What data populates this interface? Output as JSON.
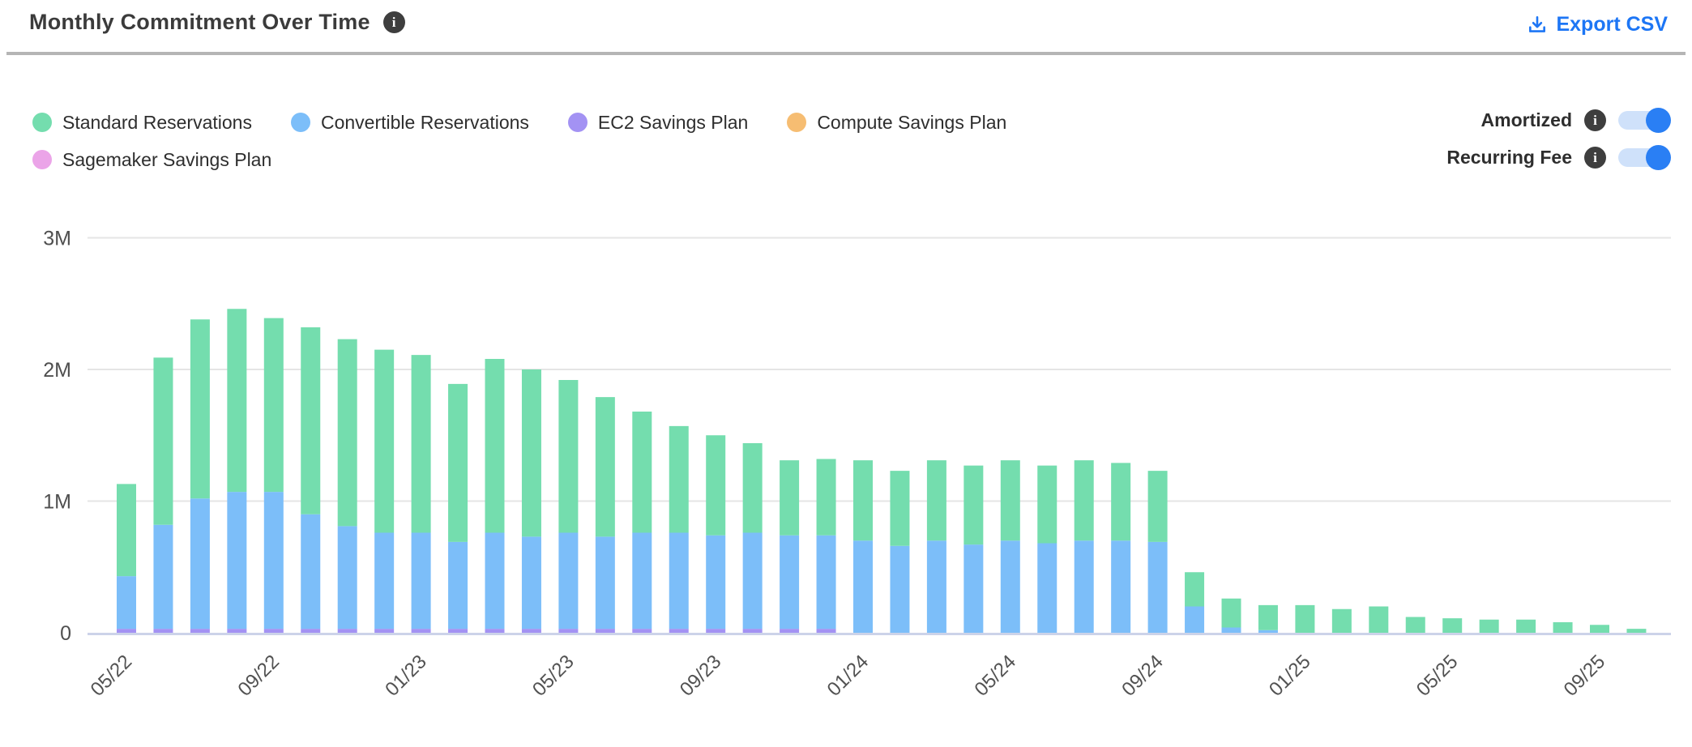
{
  "header": {
    "title": "Monthly Commitment Over Time",
    "export_label": "Export CSV"
  },
  "toggles": [
    {
      "label": "Amortized",
      "state": "on"
    },
    {
      "label": "Recurring Fee",
      "state": "on"
    }
  ],
  "legend": {
    "rows": [
      [
        0,
        1,
        2,
        3
      ],
      [
        4
      ]
    ]
  },
  "colors": {
    "accent_blue": "#1d76f5",
    "toggle_track": "#cfe1fa",
    "toggle_knob": "#2a7ff4",
    "info_icon_bg": "#3e3e3e",
    "title_text": "#3b3b3b",
    "gridline": "#e5e5e5",
    "baseline": "#ccd3e9",
    "axis_label": "#4f4f4f"
  },
  "chart_data": {
    "type": "bar",
    "stacked": true,
    "title": "Monthly Commitment Over Time",
    "xlabel": "",
    "ylabel": "",
    "ylim_millions": [
      0,
      3
    ],
    "y_tick_labels": [
      "0",
      "1M",
      "2M",
      "3M"
    ],
    "grid": "horizontal",
    "legend_position": "top-left",
    "categories": [
      "05/22",
      "06/22",
      "07/22",
      "08/22",
      "09/22",
      "10/22",
      "11/22",
      "12/22",
      "01/23",
      "02/23",
      "03/23",
      "04/23",
      "05/23",
      "06/23",
      "07/23",
      "08/23",
      "09/23",
      "10/23",
      "11/23",
      "12/23",
      "01/24",
      "02/24",
      "03/24",
      "04/24",
      "05/24",
      "06/24",
      "07/24",
      "08/24",
      "09/24",
      "10/24",
      "11/24",
      "12/24",
      "01/25",
      "02/25",
      "03/25",
      "04/25",
      "05/25",
      "06/25",
      "07/25",
      "08/25",
      "09/25",
      "10/25"
    ],
    "shown_x_tick_labels": [
      "05/22",
      "09/22",
      "01/23",
      "05/23",
      "09/23",
      "01/24",
      "05/24",
      "09/24",
      "01/25",
      "05/25",
      "09/25"
    ],
    "x_tick_every": 4,
    "values_unit": "millions",
    "stack_order_bottom_to_top": [
      "Sagemaker Savings Plan",
      "Compute Savings Plan",
      "EC2 Savings Plan",
      "Convertible Reservations",
      "Standard Reservations"
    ],
    "series": [
      {
        "name": "Standard Reservations",
        "color": "#74ddae",
        "values": [
          0.7,
          1.27,
          1.36,
          1.39,
          1.32,
          1.42,
          1.42,
          1.39,
          1.35,
          1.2,
          1.32,
          1.27,
          1.16,
          1.06,
          0.92,
          0.81,
          0.76,
          0.68,
          0.57,
          0.58,
          0.61,
          0.57,
          0.61,
          0.6,
          0.61,
          0.59,
          0.61,
          0.59,
          0.54,
          0.26,
          0.22,
          0.19,
          0.21,
          0.18,
          0.2,
          0.12,
          0.11,
          0.1,
          0.1,
          0.08,
          0.06,
          0.03
        ]
      },
      {
        "name": "Convertible Reservations",
        "color": "#7cbef9",
        "values": [
          0.4,
          0.79,
          0.99,
          1.04,
          1.04,
          0.87,
          0.78,
          0.73,
          0.73,
          0.66,
          0.73,
          0.7,
          0.73,
          0.7,
          0.73,
          0.73,
          0.71,
          0.73,
          0.71,
          0.71,
          0.7,
          0.66,
          0.7,
          0.67,
          0.7,
          0.68,
          0.7,
          0.7,
          0.69,
          0.2,
          0.04,
          0.02,
          0,
          0,
          0,
          0,
          0,
          0,
          0,
          0,
          0,
          0
        ]
      },
      {
        "name": "EC2 Savings Plan",
        "color": "#a392f3",
        "values": [
          0.03,
          0.03,
          0.03,
          0.03,
          0.03,
          0.03,
          0.03,
          0.03,
          0.03,
          0.03,
          0.03,
          0.03,
          0.03,
          0.03,
          0.03,
          0.03,
          0.03,
          0.03,
          0.03,
          0.03,
          0,
          0,
          0,
          0,
          0,
          0,
          0,
          0,
          0,
          0,
          0,
          0,
          0,
          0,
          0,
          0,
          0,
          0,
          0,
          0,
          0,
          0
        ]
      },
      {
        "name": "Compute Savings Plan",
        "color": "#f6bd72",
        "values": [
          0,
          0,
          0,
          0,
          0,
          0,
          0,
          0,
          0,
          0,
          0,
          0,
          0,
          0,
          0,
          0,
          0,
          0,
          0,
          0,
          0,
          0,
          0,
          0,
          0,
          0,
          0,
          0,
          0,
          0,
          0,
          0,
          0,
          0,
          0,
          0,
          0,
          0,
          0,
          0,
          0,
          0
        ]
      },
      {
        "name": "Sagemaker Savings Plan",
        "color": "#eba4e8",
        "values": [
          0,
          0,
          0,
          0,
          0,
          0,
          0,
          0,
          0,
          0,
          0,
          0,
          0,
          0,
          0,
          0,
          0,
          0,
          0,
          0,
          0,
          0,
          0,
          0,
          0,
          0,
          0,
          0,
          0,
          0,
          0,
          0,
          0,
          0,
          0,
          0,
          0,
          0,
          0,
          0,
          0,
          0
        ]
      }
    ]
  }
}
